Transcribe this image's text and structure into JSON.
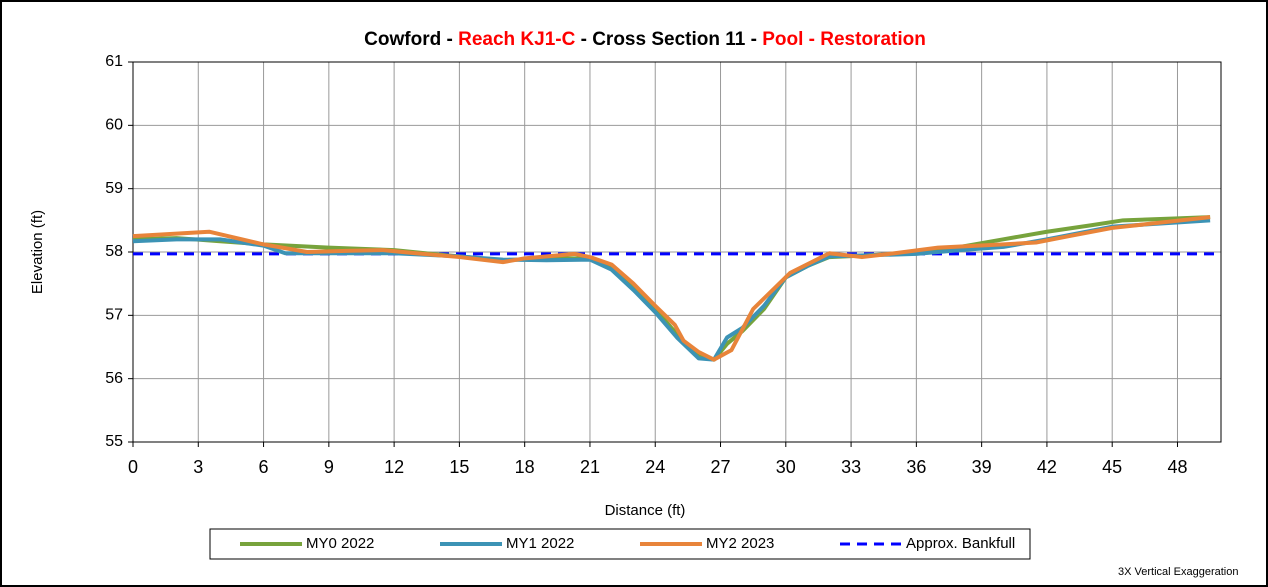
{
  "chart_data": {
    "type": "line",
    "title": [
      {
        "text": "Cowford - ",
        "color": "#000000"
      },
      {
        "text": "Reach KJ1-C",
        "color": "#ff0000"
      },
      {
        "text": " - Cross Section 11 - ",
        "color": "#000000"
      },
      {
        "text": "Pool - Restoration",
        "color": "#ff0000"
      }
    ],
    "x_label": "Distance (ft)",
    "y_label": "Elevation (ft)",
    "annotation": "3X Vertical Exaggeration",
    "xlim": [
      0,
      50
    ],
    "ylim": [
      55,
      61
    ],
    "xticks": [
      0,
      3,
      6,
      9,
      12,
      15,
      18,
      21,
      24,
      27,
      30,
      33,
      36,
      39,
      42,
      45,
      48
    ],
    "yticks": [
      55,
      56,
      57,
      58,
      59,
      60,
      61
    ],
    "grid": true,
    "legend": "bottom",
    "series": [
      {
        "name": "MY0 2022",
        "color": "#77a33c",
        "style": "solid",
        "x": [
          0,
          2,
          4,
          6,
          9,
          12,
          14,
          17,
          19,
          21,
          22,
          23,
          24,
          25,
          26,
          26.7,
          27.3,
          28,
          29,
          30,
          31,
          32,
          34,
          36,
          38,
          40,
          42,
          44,
          45.5,
          48,
          49.5
        ],
        "values": [
          58.2,
          58.22,
          58.17,
          58.12,
          58.07,
          58.03,
          57.96,
          57.87,
          57.9,
          57.9,
          57.75,
          57.45,
          57.1,
          56.7,
          56.35,
          56.3,
          56.55,
          56.75,
          57.1,
          57.6,
          57.78,
          57.92,
          57.95,
          58.0,
          58.08,
          58.2,
          58.32,
          58.42,
          58.5,
          58.53,
          58.55
        ]
      },
      {
        "name": "MY1 2022",
        "color": "#3c93b5",
        "style": "solid",
        "x": [
          0,
          2,
          4,
          6,
          7,
          9,
          12,
          15,
          17,
          19,
          21,
          22,
          23,
          24,
          25,
          26,
          26.7,
          27.3,
          28,
          29,
          30,
          31,
          32,
          34,
          36,
          38,
          40,
          42,
          45,
          49.5
        ],
        "values": [
          58.17,
          58.2,
          58.2,
          58.1,
          57.98,
          57.98,
          57.98,
          57.93,
          57.88,
          57.87,
          57.88,
          57.72,
          57.4,
          57.05,
          56.65,
          56.32,
          56.3,
          56.65,
          56.8,
          57.15,
          57.6,
          57.78,
          57.93,
          57.95,
          57.97,
          58.03,
          58.08,
          58.2,
          58.4,
          58.5
        ]
      },
      {
        "name": "MY2 2023",
        "color": "#e8843a",
        "style": "solid",
        "x": [
          0,
          2,
          3.5,
          5,
          6,
          8,
          10,
          11.5,
          13,
          15,
          17,
          18,
          20.3,
          21,
          22,
          23,
          24,
          24.9,
          25.3,
          26,
          26.7,
          27.5,
          28.5,
          30.2,
          32,
          33.5,
          35,
          37,
          40,
          41.5,
          43,
          45,
          49.5
        ],
        "values": [
          58.25,
          58.29,
          58.32,
          58.2,
          58.12,
          58.0,
          58.02,
          58.03,
          57.98,
          57.92,
          57.84,
          57.9,
          57.97,
          57.92,
          57.8,
          57.5,
          57.15,
          56.85,
          56.6,
          56.42,
          56.3,
          56.45,
          57.1,
          57.67,
          57.98,
          57.92,
          57.98,
          58.07,
          58.12,
          58.15,
          58.25,
          58.38,
          58.55
        ]
      },
      {
        "name": "Approx. Bankfull",
        "color": "#0000ff",
        "style": "dashed",
        "x": [
          0,
          50
        ],
        "values": [
          57.97,
          57.97
        ]
      }
    ]
  }
}
